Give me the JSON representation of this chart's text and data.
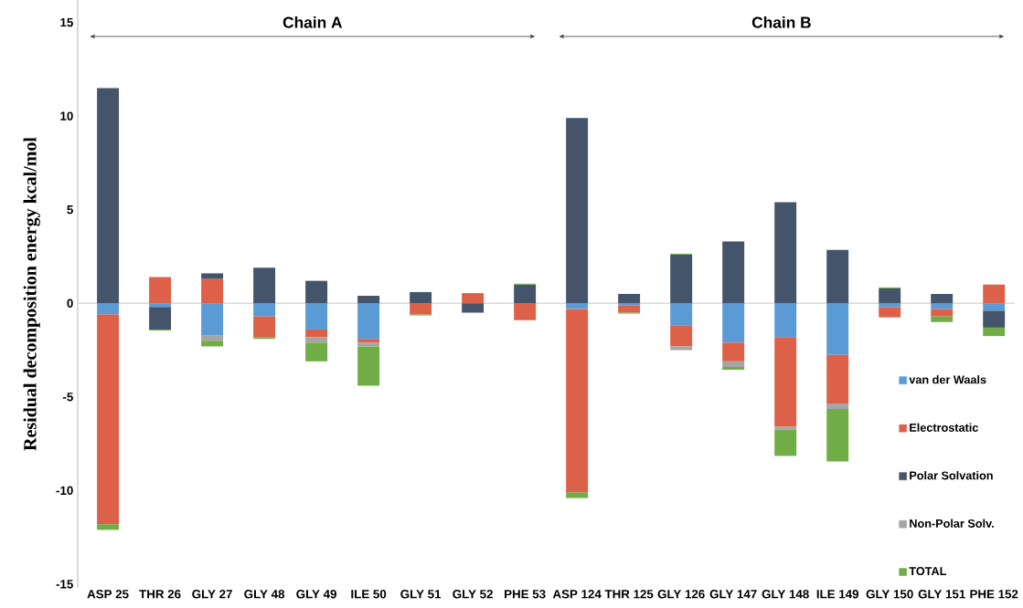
{
  "chart_data": {
    "type": "bar",
    "stacked": true,
    "ylabel": "Residual decomposition energy kcal/mol",
    "categories": [
      "ASP 25",
      "THR 26",
      "GLY 27",
      "GLY 48",
      "GLY 49",
      "ILE 50",
      "GLY 51",
      "GLY 52",
      "PHE 53",
      "ASP 124",
      "THR 125",
      "GLY 126",
      "GLY 147",
      "GLY 148",
      "ILE 149",
      "GLY 150",
      "GLY 151",
      "PHE 152"
    ],
    "series": [
      {
        "name": "van der Waals",
        "color": "#5b9bd5",
        "values": [
          -0.6,
          -0.2,
          -1.7,
          -0.7,
          -1.4,
          -1.9,
          0,
          0,
          0,
          -0.3,
          -0.1,
          -1.2,
          -2.1,
          -1.8,
          -2.75,
          -0.2,
          -0.3,
          -0.4
        ]
      },
      {
        "name": "Electrostatic",
        "color": "#dd6049",
        "values": [
          -11.2,
          1.4,
          1.3,
          -1.1,
          -0.4,
          -0.2,
          -0.6,
          0.5,
          -0.9,
          -9.8,
          -0.4,
          -1.1,
          -1.0,
          -4.8,
          -2.6,
          -0.55,
          -0.4,
          1.0
        ]
      },
      {
        "name": "Polar Solvation",
        "color": "#44546a",
        "values": [
          11.5,
          -1.2,
          0.3,
          1.9,
          1.2,
          0.4,
          0.6,
          -0.5,
          1.0,
          9.9,
          0.5,
          2.6,
          3.3,
          5.4,
          2.85,
          0.8,
          0.5,
          -0.9
        ]
      },
      {
        "name": "Non-Polar Solv.",
        "color": "#a5a5a5",
        "values": [
          null,
          0,
          -0.3,
          0,
          -0.3,
          -0.2,
          0,
          0,
          0,
          null,
          0,
          -0.2,
          -0.3,
          -0.15,
          -0.3,
          0,
          0,
          null
        ]
      },
      {
        "name": "TOTAL",
        "color": "#70ad47",
        "values": [
          -0.3,
          -0.05,
          -0.3,
          -0.1,
          -1.0,
          -2.1,
          -0.05,
          0.05,
          0.05,
          -0.3,
          -0.05,
          0.05,
          -0.15,
          -1.4,
          -2.8,
          0.05,
          -0.3,
          -0.45
        ]
      }
    ],
    "ylim": [
      -15.2,
      16.2
    ],
    "yticks": [
      -15,
      -10,
      -5,
      0,
      5,
      10,
      15
    ],
    "legend": "bottom right",
    "annotations": [
      "Chain A",
      "Chain B"
    ]
  }
}
